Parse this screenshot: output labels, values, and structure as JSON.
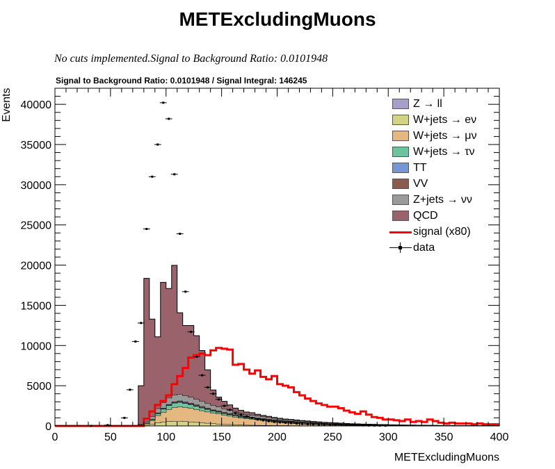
{
  "header": {
    "title": "METExcludingMuons",
    "subtitle": "No cuts implemented.Signal to Background Ratio: 0.0101948",
    "plot_title": "Signal to Background Ratio: 0.0101948 / Signal Integral: 146245"
  },
  "chart_data": {
    "type": "stacked-histogram",
    "xlabel": "METExcludingMuons",
    "ylabel": "Events",
    "xlim": [
      0,
      400
    ],
    "ylim": [
      0,
      42000
    ],
    "x_ticks": [
      0,
      50,
      100,
      150,
      200,
      250,
      300,
      350,
      400
    ],
    "y_ticks": [
      0,
      5000,
      10000,
      15000,
      20000,
      25000,
      30000,
      35000,
      40000
    ],
    "bin_edges": [
      0,
      10,
      20,
      30,
      40,
      50,
      60,
      70,
      75,
      80,
      85,
      90,
      95,
      100,
      105,
      110,
      115,
      120,
      125,
      130,
      135,
      140,
      145,
      150,
      155,
      160,
      165,
      170,
      175,
      180,
      185,
      190,
      195,
      200,
      205,
      210,
      215,
      220,
      225,
      230,
      235,
      240,
      245,
      250,
      255,
      260,
      265,
      270,
      275,
      280,
      285,
      290,
      295,
      300,
      305,
      310,
      315,
      320,
      325,
      330,
      335,
      340,
      345,
      350,
      355,
      360,
      365,
      370,
      375,
      380,
      385,
      390,
      395,
      400
    ],
    "legend_position": "top-right",
    "series": [
      {
        "name": "Z → ll",
        "color": "#a79fc7",
        "values": [
          0,
          0,
          0,
          0,
          0,
          0,
          0,
          0,
          0,
          0,
          0,
          10,
          10,
          10,
          10,
          10,
          10,
          10,
          10,
          10,
          10,
          10,
          10,
          10,
          10,
          10,
          10,
          10,
          10,
          10,
          10,
          10,
          10,
          10,
          10,
          10,
          10,
          10,
          10,
          10,
          10,
          10,
          10,
          10,
          10,
          10,
          10,
          10,
          10,
          10,
          10,
          10,
          10,
          10,
          10,
          10,
          10,
          10,
          10,
          10,
          10,
          10,
          10,
          10,
          10,
          10,
          10,
          10,
          10,
          10,
          10,
          10,
          10
        ]
      },
      {
        "name": "W+jets → eν",
        "color": "#d3d386",
        "values": [
          0,
          0,
          0,
          0,
          0,
          0,
          0,
          0,
          100,
          150,
          250,
          400,
          500,
          550,
          600,
          600,
          550,
          500,
          450,
          400,
          350,
          300,
          250,
          200,
          180,
          150,
          130,
          110,
          100,
          90,
          80,
          70,
          60,
          55,
          50,
          45,
          40,
          35,
          30,
          25,
          22,
          20,
          18,
          16,
          14,
          12,
          10,
          8,
          6,
          5,
          5,
          4,
          4,
          3,
          3,
          2,
          2,
          2,
          2,
          2,
          1,
          1,
          1,
          1,
          1,
          1,
          1,
          0,
          0,
          0,
          0,
          0,
          0
        ]
      },
      {
        "name": "W+jets → μν",
        "color": "#e4b880",
        "values": [
          0,
          0,
          0,
          0,
          0,
          0,
          0,
          0,
          50,
          150,
          400,
          900,
          1200,
          1500,
          1700,
          1800,
          1750,
          1700,
          1600,
          1500,
          1400,
          1300,
          1250,
          1150,
          1050,
          950,
          850,
          800,
          750,
          700,
          650,
          600,
          550,
          500,
          450,
          420,
          380,
          350,
          320,
          290,
          260,
          240,
          220,
          200,
          180,
          160,
          140,
          130,
          120,
          110,
          100,
          90,
          80,
          70,
          65,
          60,
          55,
          50,
          45,
          40,
          35,
          30,
          28,
          25,
          22,
          20,
          18,
          15,
          12,
          10,
          8,
          6,
          5
        ]
      },
      {
        "name": "W+jets → τν",
        "color": "#6cc39d",
        "values": [
          0,
          0,
          0,
          0,
          0,
          0,
          0,
          0,
          20,
          80,
          150,
          250,
          400,
          500,
          550,
          550,
          500,
          450,
          400,
          350,
          300,
          250,
          220,
          200,
          180,
          160,
          140,
          120,
          110,
          100,
          90,
          80,
          70,
          65,
          60,
          55,
          50,
          45,
          40,
          35,
          30,
          28,
          25,
          22,
          20,
          18,
          16,
          14,
          12,
          10,
          9,
          8,
          7,
          6,
          5,
          5,
          4,
          4,
          3,
          3,
          2,
          2,
          2,
          2,
          1,
          1,
          1,
          1,
          1,
          1,
          1,
          0,
          0
        ]
      },
      {
        "name": "TT",
        "color": "#7597d6",
        "values": [
          0,
          0,
          0,
          0,
          0,
          0,
          0,
          0,
          0,
          10,
          20,
          30,
          40,
          50,
          60,
          60,
          60,
          60,
          60,
          60,
          60,
          55,
          55,
          50,
          50,
          50,
          45,
          45,
          40,
          40,
          40,
          35,
          35,
          30,
          30,
          30,
          28,
          26,
          24,
          22,
          20,
          18,
          16,
          15,
          14,
          13,
          12,
          11,
          10,
          9,
          8,
          7,
          6,
          5,
          5,
          4,
          4,
          3,
          3,
          3,
          2,
          2,
          2,
          2,
          2,
          1,
          1,
          1,
          1,
          1,
          1,
          1,
          1
        ]
      },
      {
        "name": "VV",
        "color": "#8a5c4f",
        "values": [
          0,
          0,
          0,
          0,
          0,
          0,
          0,
          0,
          0,
          10,
          20,
          40,
          60,
          80,
          100,
          110,
          120,
          120,
          120,
          120,
          115,
          110,
          105,
          100,
          95,
          90,
          85,
          80,
          75,
          70,
          65,
          60,
          55,
          50,
          48,
          45,
          42,
          40,
          38,
          35,
          32,
          30,
          28,
          26,
          24,
          22,
          20,
          18,
          16,
          14,
          12,
          10,
          9,
          8,
          7,
          6,
          5,
          5,
          4,
          4,
          3,
          3,
          2,
          2,
          2,
          2,
          1,
          1,
          1,
          1,
          1,
          1,
          1
        ]
      },
      {
        "name": "Z+jets → νν",
        "color": "#9a9a9a",
        "values": [
          0,
          0,
          0,
          0,
          0,
          0,
          0,
          0,
          80,
          200,
          350,
          550,
          700,
          800,
          850,
          850,
          800,
          750,
          700,
          650,
          600,
          550,
          500,
          450,
          400,
          350,
          320,
          290,
          260,
          240,
          220,
          200,
          180,
          160,
          150,
          140,
          130,
          120,
          110,
          100,
          90,
          80,
          75,
          70,
          65,
          60,
          55,
          50,
          45,
          40,
          38,
          35,
          32,
          30,
          28,
          25,
          22,
          20,
          18,
          16,
          15,
          14,
          13,
          12,
          11,
          10,
          9,
          8,
          7,
          6,
          5,
          4,
          4
        ]
      },
      {
        "name": "QCD",
        "color": "#9a636c",
        "values": [
          0,
          0,
          0,
          0,
          0,
          0,
          0,
          0,
          4750,
          17750,
          12100,
          8900,
          14950,
          13600,
          16100,
          10100,
          8700,
          8900,
          7880,
          6290,
          4140,
          1900,
          1200,
          900,
          650,
          450,
          350,
          275,
          300,
          200,
          150,
          130,
          100,
          80,
          60,
          50,
          50,
          40,
          40,
          30,
          30,
          20,
          20,
          20,
          20,
          10,
          10,
          10,
          10,
          10,
          10,
          10,
          10,
          10,
          0,
          0,
          0,
          0,
          0,
          0,
          0,
          0,
          0,
          0,
          0,
          0,
          0,
          0,
          0,
          0,
          0,
          0,
          0
        ]
      },
      {
        "name": "signal (x80)",
        "color": "#ff0000",
        "kind": "line",
        "values": [
          0,
          0,
          0,
          0,
          0,
          0,
          0,
          0,
          0,
          900,
          1800,
          2600,
          3100,
          3800,
          5200,
          6200,
          7200,
          8500,
          8800,
          9000,
          8800,
          9400,
          9700,
          9600,
          9500,
          7600,
          7700,
          7000,
          6500,
          6900,
          6100,
          5800,
          6200,
          5200,
          5000,
          4800,
          4200,
          3800,
          3400,
          3100,
          2800,
          2600,
          2400,
          2400,
          2200,
          1900,
          1700,
          1500,
          1800,
          1400,
          1100,
          1000,
          800,
          800,
          700,
          600,
          800,
          500,
          600,
          500,
          800,
          600,
          400,
          300,
          400,
          300,
          300,
          300,
          200,
          300,
          200,
          200,
          200
        ]
      },
      {
        "name": "data",
        "color": "#000000",
        "kind": "points",
        "x": [
          32.5,
          47.5,
          62.5,
          67.5,
          72.5,
          77.5,
          82.5,
          87.5,
          92.5,
          97.5,
          102.5,
          107.5,
          112.5,
          117.5,
          122.5,
          127.5,
          132.5,
          137.5,
          142.5,
          147.5,
          152.5,
          157.5,
          162.5,
          167.5,
          172.5,
          177.5,
          182.5,
          187.5,
          192.5,
          197.5,
          202.5,
          207.5,
          212.5,
          217.5,
          222.5,
          227.5,
          232.5,
          237.5,
          242.5,
          247.5,
          252.5,
          257.5,
          262.5,
          267.5,
          272.5,
          277.5,
          282.5,
          287.5,
          292.5,
          297.5
        ],
        "values": [
          0,
          100,
          1000,
          4500,
          10500,
          12800,
          24500,
          31000,
          35000,
          40200,
          38200,
          31300,
          23900,
          16700,
          11700,
          8600,
          6300,
          4800,
          4000,
          3300,
          2500,
          2000,
          1600,
          1400,
          1200,
          1000,
          800,
          700,
          600,
          500,
          450,
          400,
          350,
          300,
          250,
          220,
          200,
          180,
          160,
          140,
          120,
          110,
          100,
          90,
          80,
          70,
          60,
          50,
          40,
          30
        ]
      }
    ]
  }
}
